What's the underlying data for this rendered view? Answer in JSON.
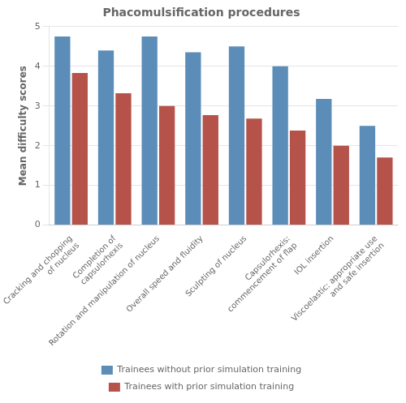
{
  "chart_data": {
    "type": "bar",
    "title": "Phacomulsification procedures",
    "ylabel": "Mean difficulty scores",
    "categories": [
      "Cracking and chopping\nof nucleus",
      "Completion of\ncapsulorhexis",
      "Rotation and manipulation of nucleus",
      "Overall speed and fluidity",
      "Sculpting of nucleus",
      "Capsulorhexis:\ncommencement of flap",
      "IOL insertion",
      "Viscoelastic: appropriate use\nand safe insertion"
    ],
    "series": [
      {
        "name": "Trainees without prior simulation training",
        "color": "#5B8DB8",
        "values": [
          4.75,
          4.4,
          4.75,
          4.35,
          4.5,
          4.0,
          3.18,
          2.5
        ]
      },
      {
        "name": "Trainees with prior simulation training",
        "color": "#B5524A",
        "values": [
          3.83,
          3.32,
          3.0,
          2.77,
          2.68,
          2.38,
          2.0,
          1.7
        ]
      }
    ],
    "ylim": [
      0,
      5
    ],
    "yticks": [
      0,
      1,
      2,
      3,
      4,
      5
    ],
    "grid": "y",
    "legend": "bottom"
  }
}
